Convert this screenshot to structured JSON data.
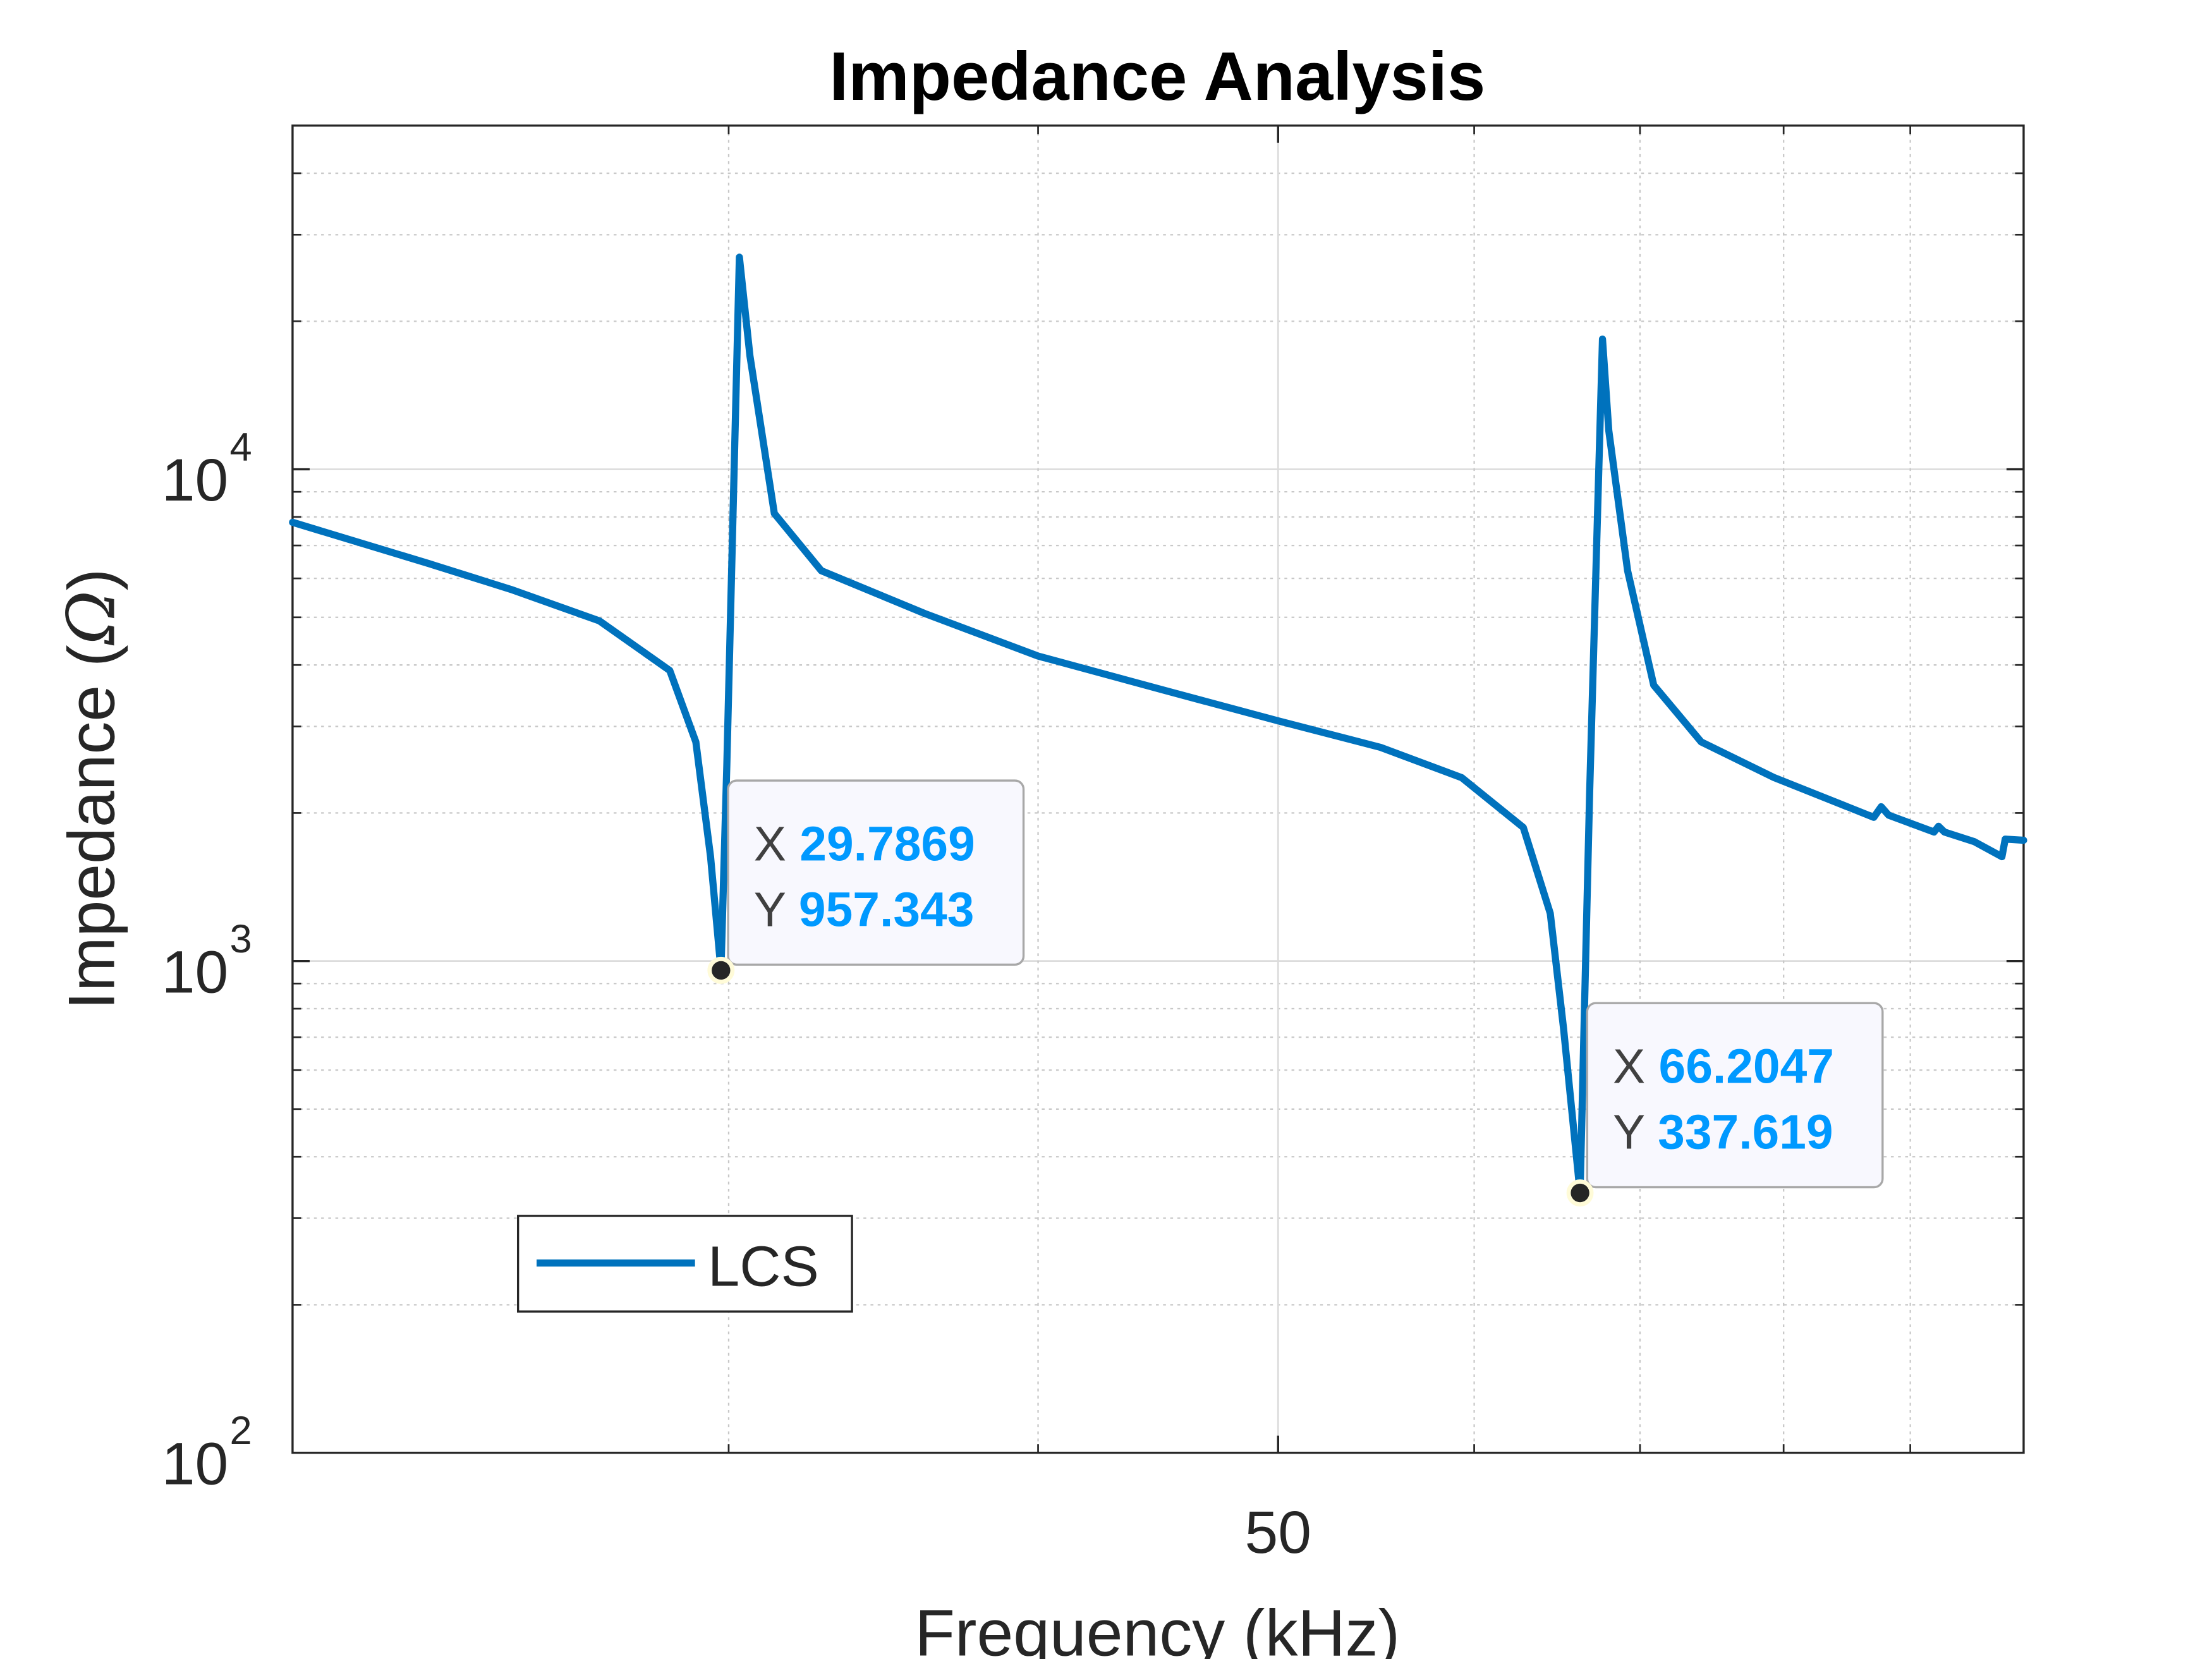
{
  "chart_data": {
    "type": "line",
    "title": "Impedance Analysis",
    "xlabel": "Frequency (kHz)",
    "ylabel": "Impedance (",
    "ylabel_symbol": "Ω",
    "ylabel_close": ")",
    "xscale": "log",
    "yscale": "log",
    "xlim": [
      20,
      100
    ],
    "ylim": [
      100,
      50000
    ],
    "grid": true,
    "x_ticks": [
      {
        "value": 50,
        "label": "50"
      }
    ],
    "y_ticks": [
      {
        "value": 100,
        "base": "10",
        "exp": "2"
      },
      {
        "value": 1000,
        "base": "10",
        "exp": "3"
      },
      {
        "value": 10000,
        "base": "10",
        "exp": "4"
      }
    ],
    "x_minor_grid": [
      30,
      40,
      60,
      70,
      80,
      90
    ],
    "legend": {
      "placement": "lower-left",
      "entries": [
        "LCS"
      ]
    },
    "series": [
      {
        "name": "LCS",
        "color": "#0072BD",
        "x": [
          20,
          22.7,
          24.5,
          26.6,
          28.4,
          29.1,
          29.5,
          29.7869,
          29.95,
          30.3,
          30.6,
          31.3,
          32.7,
          36.0,
          40.0,
          45.0,
          50.0,
          55.0,
          59.3,
          62.8,
          64.4,
          65.2,
          66.2047,
          66.8,
          67.6,
          68.0,
          69.2,
          70.9,
          74.1,
          79.3,
          87.0,
          87.6,
          88.2,
          92.0,
          92.4,
          92.9,
          95.5,
          98.0,
          98.3,
          100
        ],
        "y": [
          7800,
          6430,
          5700,
          4920,
          3900,
          2790,
          1630,
          957.343,
          2500,
          27000,
          17000,
          8130,
          6220,
          5090,
          4170,
          3550,
          3080,
          2720,
          2360,
          1870,
          1250,
          730,
          337.619,
          2200,
          18400,
          12000,
          6220,
          3640,
          2790,
          2360,
          1960,
          2060,
          1980,
          1830,
          1880,
          1830,
          1750,
          1630,
          1770,
          1760
        ]
      }
    ],
    "annotations": [
      {
        "x_label": "X",
        "y_label": "Y",
        "x": 29.7869,
        "y": 957.343,
        "x_text": "29.7869",
        "y_text": "957.343"
      },
      {
        "x_label": "X",
        "y_label": "Y",
        "x": 66.2047,
        "y": 337.619,
        "x_text": "66.2047",
        "y_text": "337.619"
      }
    ],
    "colors": {
      "line": "#0072BD",
      "datatip_value": "#0099FF",
      "datatip_label": "#404040",
      "axis": "#262626"
    }
  }
}
